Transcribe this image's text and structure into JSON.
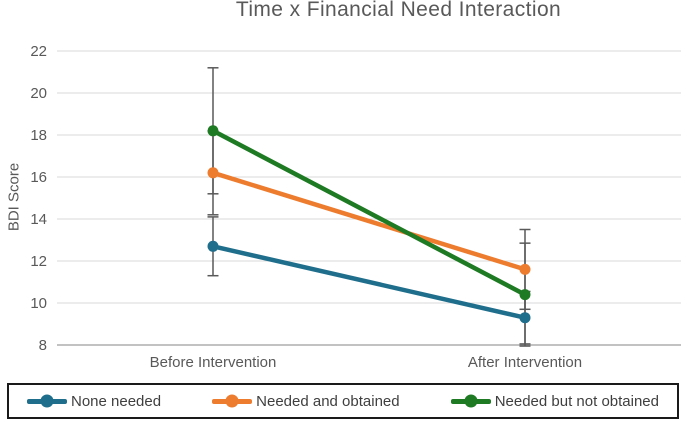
{
  "chart_data": {
    "type": "line",
    "title": "Time x Financial Need Interaction",
    "ylabel": "BDI Score",
    "xlabel": "",
    "categories": [
      "Before Intervention",
      "After Intervention"
    ],
    "ylim": [
      8,
      22
    ],
    "yticks": [
      22,
      20,
      18,
      16,
      14,
      12,
      10,
      8
    ],
    "grid": true,
    "legend_position": "bottom-boxed",
    "error_bars": true,
    "error_bar_color": "#595959",
    "axis_text_color": "#595959",
    "gridline_color": "#d9d9d9",
    "series": [
      {
        "name": "None needed",
        "color": "#1f6e8c",
        "values": [
          12.7,
          9.3
        ],
        "errors": [
          1.4,
          1.25
        ]
      },
      {
        "name": "Needed and obtained",
        "color": "#ed7c2f",
        "values": [
          16.2,
          11.6
        ],
        "errors": [
          2.0,
          1.9
        ]
      },
      {
        "name": "Needed but not obtained",
        "color": "#1e7a23",
        "values": [
          18.2,
          10.4
        ],
        "errors": [
          3.0,
          2.45
        ]
      }
    ]
  }
}
